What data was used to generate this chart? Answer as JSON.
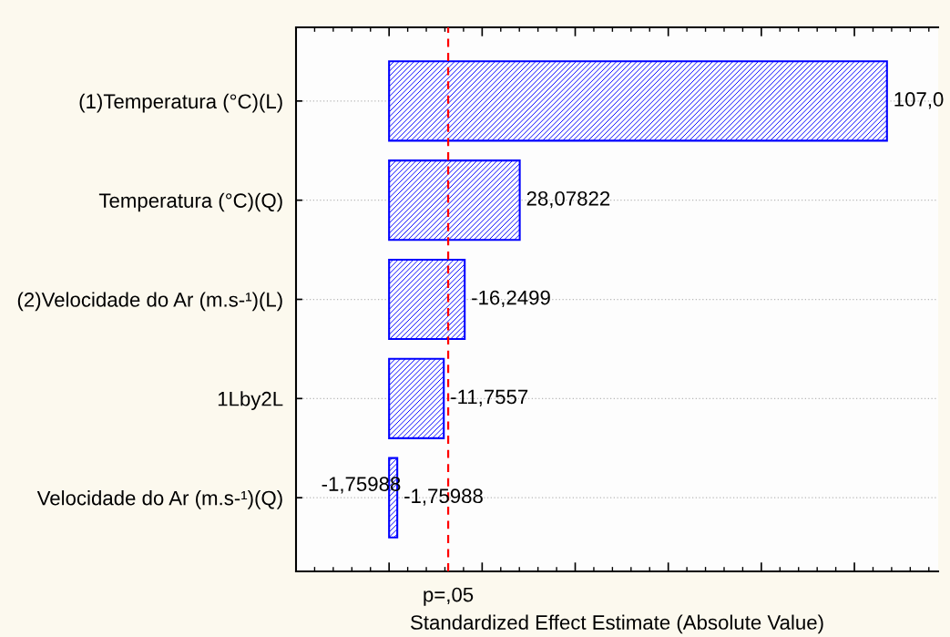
{
  "chart_data": {
    "type": "bar",
    "orientation": "horizontal",
    "xlabel": "Standardized Effect Estimate (Absolute Value)",
    "categories": [
      "(1)Temperatura (°C)(L)",
      "Temperatura (°C)(Q)",
      "(2)Velocidade do Ar (m.s-¹)(L)",
      "1Lby2L",
      "Velocidade do Ar (m.s-¹)(Q)"
    ],
    "values": [
      107.0,
      28.07822,
      16.2499,
      11.7557,
      1.75988
    ],
    "value_labels": [
      "107,0",
      "28,07822",
      "-16,2499",
      "-11,7557",
      "-1,75988"
    ],
    "color": "#0000ff",
    "xlim": [
      -20,
      118
    ],
    "xticks": [
      {
        "value": -20,
        "label": null
      },
      {
        "value": 0,
        "label": null
      },
      {
        "value": 20,
        "label": null
      },
      {
        "value": 40,
        "label": null
      },
      {
        "value": 60,
        "label": null
      },
      {
        "value": 80,
        "label": null
      },
      {
        "value": 100,
        "label": null
      }
    ],
    "tick_labels": "y",
    "grid": "y",
    "ref_lines": [
      {
        "axis": "x",
        "value": 12.7,
        "label": "p=,05",
        "color": "#ff0000",
        "line_style": "dashed"
      }
    ],
    "annotations": [
      {
        "text": "-1,75988",
        "x": 1.75988,
        "y": "Velocidade do Ar (m.s-¹)(Q)"
      }
    ]
  }
}
